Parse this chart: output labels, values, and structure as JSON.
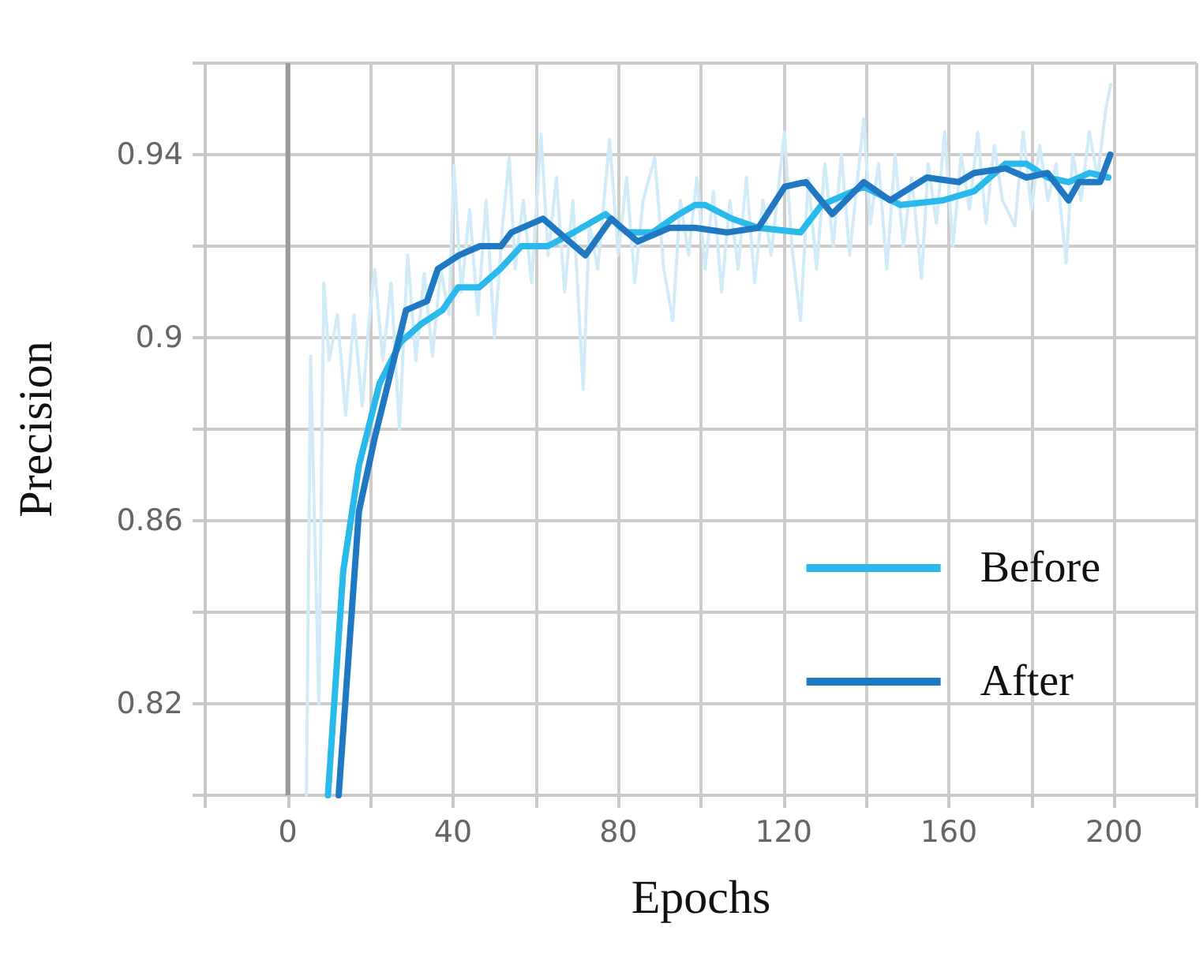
{
  "chart_data": {
    "type": "line",
    "xlabel": "Epochs",
    "ylabel": "Precision",
    "xlim": [
      -20,
      220
    ],
    "ylim": [
      0.8,
      0.96
    ],
    "xticks": [
      {
        "value": -20,
        "label": null
      },
      0,
      {
        "value": 20,
        "label": null
      },
      40,
      {
        "value": 60,
        "label": null
      },
      80,
      {
        "value": 100,
        "label": null
      },
      120,
      {
        "value": 140,
        "label": null
      },
      160,
      {
        "value": 180,
        "label": null
      },
      200,
      {
        "value": 220,
        "label": null
      }
    ],
    "yticks": [
      {
        "value": 0.8,
        "label": null
      },
      0.82,
      {
        "value": 0.84,
        "label": null
      },
      0.86,
      {
        "value": 0.88,
        "label": null
      },
      0.9,
      {
        "value": 0.92,
        "label": null
      },
      0.94,
      {
        "value": 0.96,
        "label": null
      }
    ],
    "grid": true,
    "legend": "bottom right",
    "ref_lines": [
      {
        "axis": "x",
        "value": 0,
        "color": "#9a9a9a"
      }
    ],
    "series": [
      {
        "color": "#d2ebf8",
        "x": [
          4.5,
          5.5,
          7.5,
          8.7,
          10,
          12,
          14,
          16,
          18,
          19.5,
          21,
          23,
          25,
          27,
          29,
          31,
          33,
          35,
          37,
          39,
          40.2,
          42,
          44,
          46,
          48,
          50,
          52,
          53.6,
          55,
          57,
          59,
          61.3,
          63,
          65,
          67,
          69,
          71.5,
          73,
          75,
          77.9,
          80,
          82,
          84,
          86,
          88.8,
          91,
          93.2,
          95,
          97,
          99,
          101,
          103,
          105,
          107,
          109,
          111,
          113,
          115,
          117,
          120.2,
          122,
          124.1,
          126,
          128,
          130,
          132,
          134,
          136,
          139.4,
          141,
          143,
          145,
          147,
          149,
          151,
          153.4,
          155,
          157,
          159,
          161,
          163,
          165,
          167,
          169,
          171,
          173,
          176,
          178,
          180,
          182,
          184,
          186,
          188.4,
          190,
          192,
          194,
          196,
          198,
          199.2
        ],
        "values": [
          0.8,
          0.896,
          0.82,
          0.912,
          0.895,
          0.905,
          0.883,
          0.905,
          0.885,
          0.902,
          0.915,
          0.895,
          0.912,
          0.88,
          0.918,
          0.895,
          0.914,
          0.896,
          0.915,
          0.905,
          0.9376,
          0.91,
          0.928,
          0.905,
          0.93,
          0.9,
          0.925,
          0.9393,
          0.915,
          0.93,
          0.912,
          0.9445,
          0.918,
          0.935,
          0.91,
          0.93,
          0.8887,
          0.925,
          0.915,
          0.9433,
          0.918,
          0.935,
          0.912,
          0.93,
          0.9393,
          0.915,
          0.9037,
          0.93,
          0.918,
          0.935,
          0.915,
          0.932,
          0.91,
          0.93,
          0.915,
          0.935,
          0.912,
          0.93,
          0.918,
          0.945,
          0.92,
          0.9038,
          0.935,
          0.915,
          0.938,
          0.92,
          0.94,
          0.918,
          0.9479,
          0.925,
          0.938,
          0.915,
          0.94,
          0.92,
          0.935,
          0.9129,
          0.938,
          0.925,
          0.945,
          0.92,
          0.94,
          0.928,
          0.945,
          0.925,
          0.942,
          0.93,
          0.9244,
          0.945,
          0.928,
          0.942,
          0.93,
          0.938,
          0.9163,
          0.94,
          0.93,
          0.945,
          0.935,
          0.95,
          0.9554
        ]
      },
      {
        "name": "Before",
        "color": "#29b9ea",
        "x": [
          9.7,
          13.4,
          17.2,
          22.2,
          27.3,
          32.3,
          37.4,
          41.2,
          46.3,
          51.4,
          56.5,
          62.9,
          69.2,
          76.9,
          82,
          88.3,
          94.7,
          98.6,
          101,
          107.5,
          113.9,
          124.1,
          129.2,
          139.4,
          148.3,
          158.5,
          166.1,
          173.7,
          178.8,
          183.9,
          189,
          194.1,
          198.6
        ],
        "values": [
          0.8,
          0.849,
          0.872,
          0.89,
          0.899,
          0.903,
          0.906,
          0.911,
          0.911,
          0.915,
          0.92,
          0.92,
          0.923,
          0.927,
          0.923,
          0.923,
          0.927,
          0.929,
          0.929,
          0.926,
          0.924,
          0.923,
          0.929,
          0.933,
          0.929,
          0.93,
          0.932,
          0.938,
          0.938,
          0.935,
          0.934,
          0.936,
          0.935
        ]
      },
      {
        "name": "After",
        "color": "#1f78c1",
        "x": [
          12.3,
          17.2,
          21,
          24.8,
          28.6,
          33.7,
          36.3,
          41.4,
          46.5,
          51.6,
          54.1,
          61.8,
          66.9,
          72,
          78.3,
          84.7,
          92.4,
          98.6,
          106.3,
          113.9,
          120.3,
          125.4,
          131.8,
          139.4,
          145.8,
          154.7,
          162.4,
          166.1,
          173.7,
          178.8,
          183.9,
          189,
          191.5,
          196.6,
          199.1
        ],
        "values": [
          0.8,
          0.862,
          0.878,
          0.892,
          0.906,
          0.908,
          0.915,
          0.918,
          0.92,
          0.92,
          0.923,
          0.926,
          0.922,
          0.918,
          0.926,
          0.921,
          0.924,
          0.924,
          0.923,
          0.924,
          0.933,
          0.934,
          0.927,
          0.934,
          0.93,
          0.935,
          0.934,
          0.936,
          0.937,
          0.935,
          0.936,
          0.93,
          0.934,
          0.934,
          0.94
        ]
      }
    ]
  }
}
